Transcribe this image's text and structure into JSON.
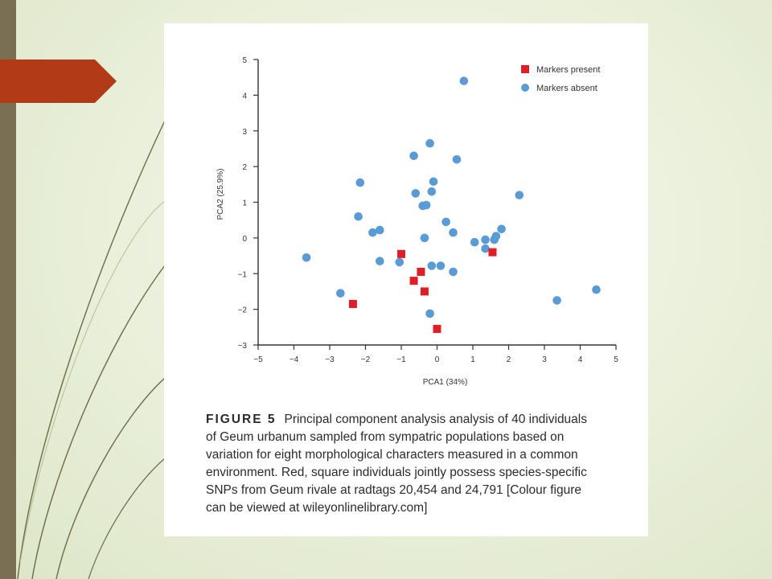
{
  "slide": {
    "accent_color": "#b23a16",
    "bar_color": "#7a6f52"
  },
  "chart_data": {
    "type": "scatter",
    "xlabel": "PCA1 (34%)",
    "ylabel": "PCA2 (25.9%)",
    "xlim": [
      -5,
      5
    ],
    "ylim": [
      -3,
      5
    ],
    "xticks": [
      -5,
      -4,
      -3,
      -2,
      -1,
      0,
      1,
      2,
      3,
      4,
      5
    ],
    "yticks": [
      -3,
      -2,
      -1,
      0,
      1,
      2,
      3,
      4,
      5
    ],
    "xtick_labels": [
      "−5",
      "−4",
      "−3",
      "−2",
      "−1",
      "0",
      "1",
      "2",
      "3",
      "4",
      "5"
    ],
    "ytick_labels": [
      "−3",
      "−2",
      "−1",
      "0",
      "1",
      "2",
      "3",
      "4",
      "5"
    ],
    "grid": false,
    "legend_position": "top-right",
    "series": [
      {
        "name": "Markers present",
        "marker": "square",
        "color": "#e01e26",
        "points": [
          [
            -1.0,
            -0.45
          ],
          [
            -0.65,
            -1.2
          ],
          [
            -0.45,
            -0.95
          ],
          [
            -0.35,
            -1.5
          ],
          [
            0.0,
            -2.55
          ],
          [
            -2.35,
            -1.85
          ],
          [
            1.55,
            -0.4
          ]
        ]
      },
      {
        "name": "Markers absent",
        "marker": "circle",
        "color": "#5b9bd5",
        "points": [
          [
            0.75,
            4.4
          ],
          [
            -0.2,
            2.65
          ],
          [
            -0.65,
            2.3
          ],
          [
            0.55,
            2.2
          ],
          [
            -2.15,
            1.55
          ],
          [
            -0.1,
            1.58
          ],
          [
            -0.6,
            1.25
          ],
          [
            -0.15,
            1.3
          ],
          [
            2.3,
            1.2
          ],
          [
            -0.4,
            0.9
          ],
          [
            -0.3,
            0.92
          ],
          [
            -2.2,
            0.6
          ],
          [
            0.25,
            0.45
          ],
          [
            -1.6,
            0.22
          ],
          [
            -1.8,
            0.15
          ],
          [
            0.45,
            0.15
          ],
          [
            1.8,
            0.25
          ],
          [
            1.65,
            0.05
          ],
          [
            -0.35,
            0.0
          ],
          [
            1.35,
            -0.05
          ],
          [
            1.6,
            -0.05
          ],
          [
            1.05,
            -0.12
          ],
          [
            1.35,
            -0.3
          ],
          [
            -3.65,
            -0.55
          ],
          [
            -1.6,
            -0.65
          ],
          [
            -1.05,
            -0.68
          ],
          [
            -0.15,
            -0.78
          ],
          [
            0.1,
            -0.78
          ],
          [
            0.45,
            -0.95
          ],
          [
            -2.7,
            -1.55
          ],
          [
            -0.2,
            -2.12
          ],
          [
            3.35,
            -1.75
          ],
          [
            4.45,
            -1.45
          ]
        ]
      }
    ]
  },
  "caption": {
    "figure_label": "FIGURE 5",
    "text_lines": [
      "Principal component analysis analysis of 40 individuals",
      "of Geum urbanum sampled from sympatric populations based on",
      "variation for eight morphological characters measured in a common",
      "environment. Red, square individuals jointly possess species-specific",
      "SNPs from Geum rivale at radtags 20,454 and 24,791 [Colour figure",
      "can be viewed at wileyonlinelibrary.com]"
    ]
  }
}
